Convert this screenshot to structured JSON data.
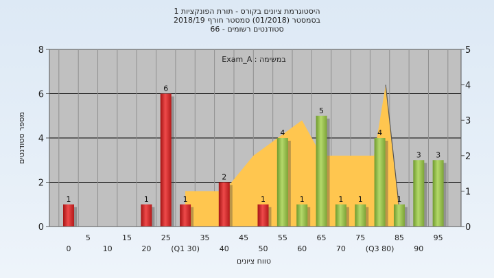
{
  "chart_data": {
    "type": "bar",
    "title_lines": [
      "היסטוגרמת ציונים בקורס - תורת הפונקציות 1",
      "בסמסטר  (01/2018)  סמסטר חורף 2018/19",
      "סטודנטים רשומים - 66"
    ],
    "assignment_label": "במשימה : Exam_A",
    "xlabel": "טווח ציונים",
    "ylabel": "מספר סטודנטים",
    "ylim": [
      0,
      8
    ],
    "y2lim": [
      0,
      5
    ],
    "yticks": [
      0,
      2,
      4,
      6,
      8
    ],
    "y2ticks": [
      0,
      1,
      2,
      3,
      4,
      5
    ],
    "x_ticks_upper": [
      "5",
      "15",
      "25",
      "35",
      "45",
      "55",
      "65",
      "75",
      "85",
      "95"
    ],
    "x_ticks_lower": [
      "0",
      "10",
      "20",
      "(Q1 30)",
      "40",
      "50",
      "60",
      "70",
      "(Q3 80)",
      "90"
    ],
    "bars": [
      {
        "x": 0,
        "value": 1,
        "color": "red"
      },
      {
        "x": 20,
        "value": 1,
        "color": "red"
      },
      {
        "x": 25,
        "value": 6,
        "color": "red"
      },
      {
        "x": 30,
        "value": 1,
        "color": "red"
      },
      {
        "x": 40,
        "value": 2,
        "color": "red"
      },
      {
        "x": 50,
        "value": 1,
        "color": "red"
      },
      {
        "x": 55,
        "value": 4,
        "color": "green"
      },
      {
        "x": 60,
        "value": 1,
        "color": "green"
      },
      {
        "x": 65,
        "value": 5,
        "color": "green"
      },
      {
        "x": 70,
        "value": 1,
        "color": "green"
      },
      {
        "x": 75,
        "value": 1,
        "color": "green"
      },
      {
        "x": 80,
        "value": 4,
        "color": "green"
      },
      {
        "x": 85,
        "value": 1,
        "color": "green"
      },
      {
        "x": 90,
        "value": 3,
        "color": "green"
      },
      {
        "x": 95,
        "value": 3,
        "color": "green"
      }
    ],
    "area_secondary": [
      {
        "x": 30,
        "y": 1
      },
      {
        "x": 40,
        "y": 1
      },
      {
        "x": 47.5,
        "y": 2
      },
      {
        "x": 60,
        "y": 3
      },
      {
        "x": 65,
        "y": 2
      },
      {
        "x": 78.5,
        "y": 2
      },
      {
        "x": 81.5,
        "y": 4
      },
      {
        "x": 85,
        "y": 0.5
      }
    ],
    "trend_line": [
      {
        "x": 81.5,
        "y": 4
      },
      {
        "x": 85,
        "y": 0.5
      }
    ],
    "colors": {
      "red": "#d42d2d",
      "green": "#94bd4c",
      "area": "#ffc64f",
      "plot_bg": "#c0c0c0"
    },
    "grid": true
  }
}
